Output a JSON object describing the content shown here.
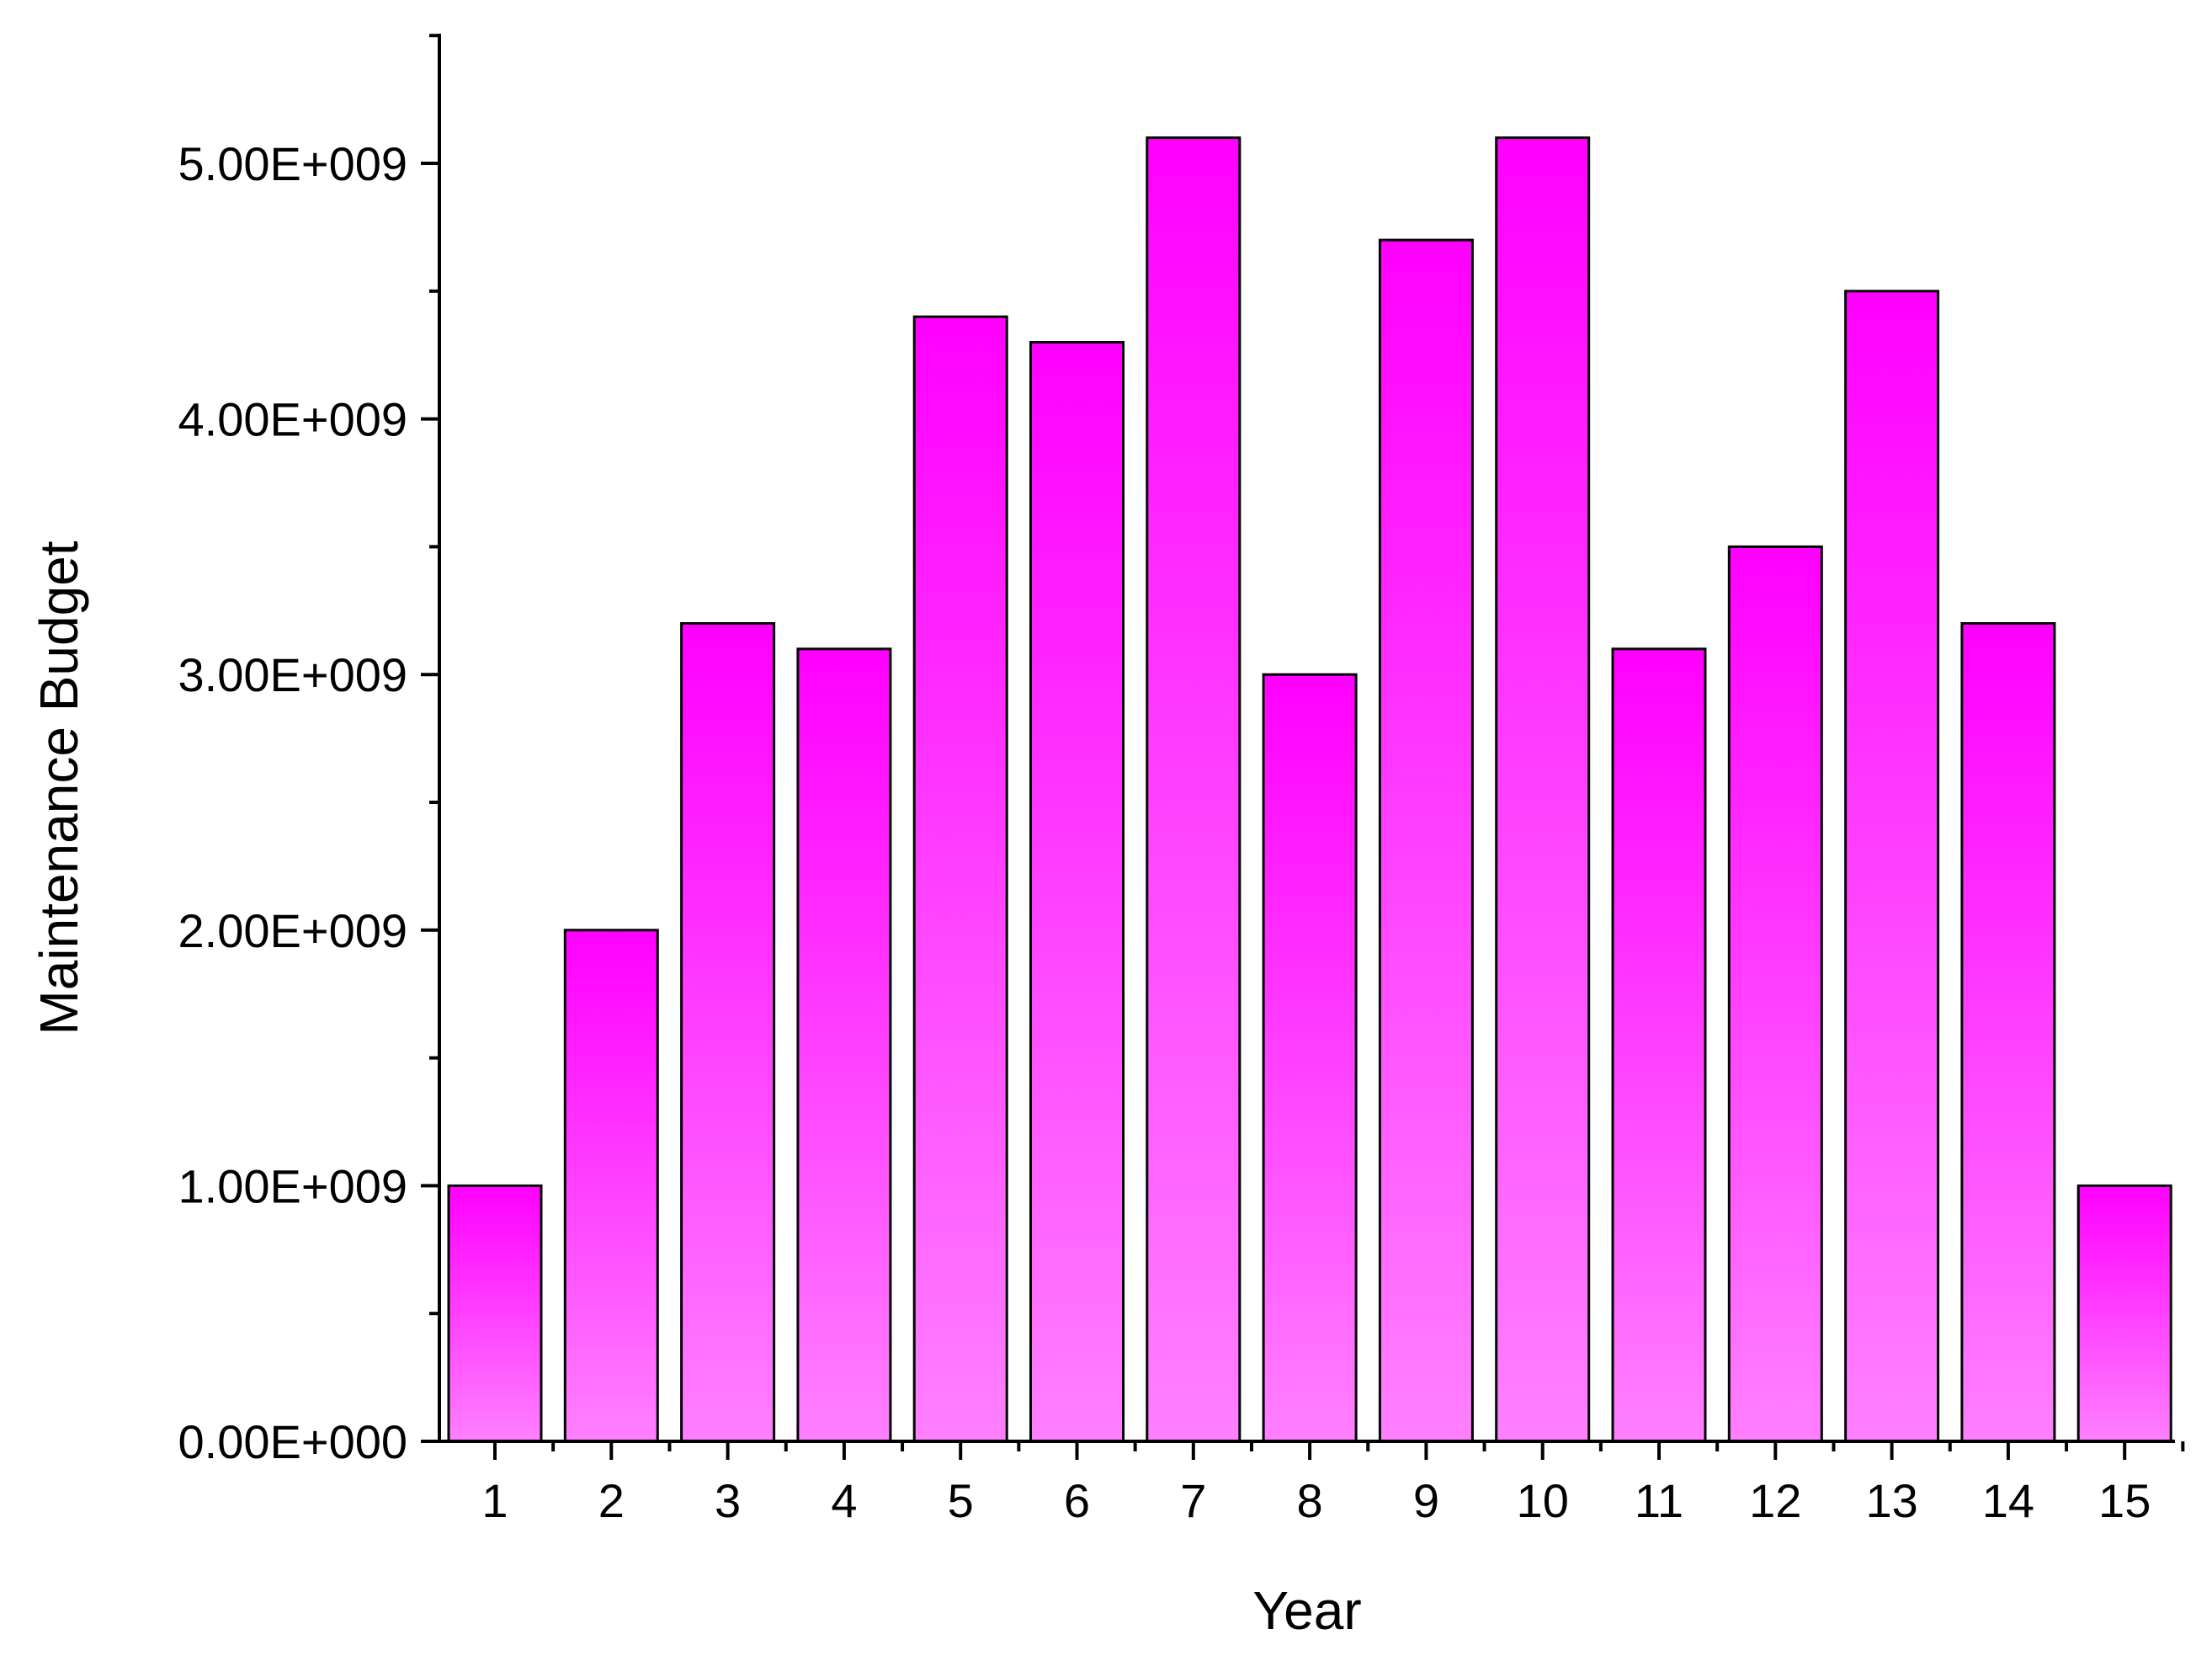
{
  "chart_data": {
    "type": "bar",
    "xlabel": "Year",
    "ylabel": "Maintenance Budget",
    "categories": [
      "1",
      "2",
      "3",
      "4",
      "5",
      "6",
      "7",
      "8",
      "9",
      "10",
      "11",
      "12",
      "13",
      "14",
      "15"
    ],
    "values": [
      1000000000,
      2000000000,
      3200000000,
      3100000000,
      4400000000,
      4300000000,
      5100000000,
      3000000000,
      4700000000,
      5100000000,
      3100000000,
      3500000000,
      4500000000,
      3200000000,
      1000000000
    ],
    "ylim": [
      0,
      5500000000
    ],
    "yticks": [
      0,
      1000000000,
      2000000000,
      3000000000,
      4000000000,
      5000000000
    ],
    "ytick_labels": [
      "0.00E+000",
      "1.00E+009",
      "2.00E+009",
      "3.00E+009",
      "4.00E+009",
      "5.00E+009"
    ],
    "grid": false,
    "legend": "none",
    "colors": {
      "bar_top": "#ff00ff",
      "bar_bottom": "#ff80ff",
      "bar_edge": "#000000",
      "axis": "#000000"
    }
  }
}
